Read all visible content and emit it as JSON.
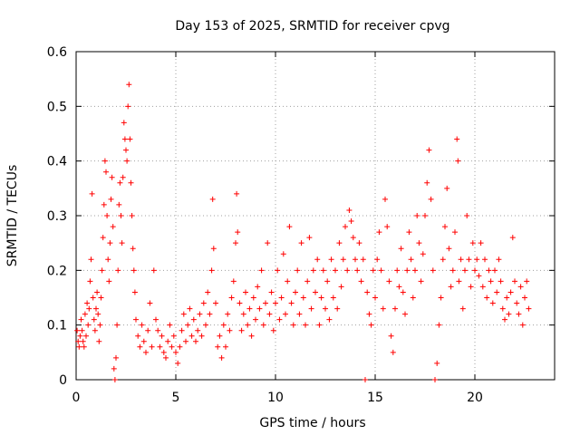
{
  "chart_data": {
    "type": "scatter",
    "title": "Day 153 of 2025, SRMTID for receiver cpvg",
    "xlabel": "GPS time / hours",
    "ylabel": "SRMTID / TECUs",
    "xlim": [
      0,
      24
    ],
    "ylim": [
      0,
      0.6
    ],
    "xticks": [
      0,
      5,
      10,
      15,
      20
    ],
    "xtick_labels": [
      "0",
      "5",
      "10",
      "15",
      "20"
    ],
    "yticks": [
      0,
      0.1,
      0.2,
      0.3,
      0.4,
      0.5,
      0.6
    ],
    "ytick_labels": [
      "0",
      "0.1",
      "0.2",
      "0.3",
      "0.4",
      "0.5",
      "0.6"
    ],
    "grid": true,
    "marker": "plus",
    "color": "#ff0000",
    "series": [
      {
        "name": "SRMTID",
        "points": [
          [
            0.05,
            0.09
          ],
          [
            0.1,
            0.07
          ],
          [
            0.15,
            0.06
          ],
          [
            0.2,
            0.08
          ],
          [
            0.25,
            0.11
          ],
          [
            0.3,
            0.09
          ],
          [
            0.35,
            0.07
          ],
          [
            0.4,
            0.06
          ],
          [
            0.45,
            0.12
          ],
          [
            0.5,
            0.08
          ],
          [
            0.55,
            0.14
          ],
          [
            0.6,
            0.1
          ],
          [
            0.65,
            0.13
          ],
          [
            0.7,
            0.18
          ],
          [
            0.75,
            0.22
          ],
          [
            0.8,
            0.34
          ],
          [
            0.85,
            0.15
          ],
          [
            0.9,
            0.11
          ],
          [
            0.95,
            0.09
          ],
          [
            1.0,
            0.13
          ],
          [
            1.05,
            0.16
          ],
          [
            1.1,
            0.12
          ],
          [
            1.15,
            0.07
          ],
          [
            1.2,
            0.1
          ],
          [
            1.25,
            0.15
          ],
          [
            1.3,
            0.2
          ],
          [
            1.35,
            0.26
          ],
          [
            1.4,
            0.32
          ],
          [
            1.45,
            0.4
          ],
          [
            1.5,
            0.38
          ],
          [
            1.55,
            0.3
          ],
          [
            1.6,
            0.22
          ],
          [
            1.65,
            0.18
          ],
          [
            1.7,
            0.25
          ],
          [
            1.75,
            0.33
          ],
          [
            1.8,
            0.37
          ],
          [
            1.85,
            0.28
          ],
          [
            1.9,
            0.02
          ],
          [
            1.95,
            0.0
          ],
          [
            2.0,
            0.04
          ],
          [
            2.05,
            0.1
          ],
          [
            2.1,
            0.2
          ],
          [
            2.15,
            0.32
          ],
          [
            2.2,
            0.36
          ],
          [
            2.25,
            0.3
          ],
          [
            2.3,
            0.25
          ],
          [
            2.35,
            0.37
          ],
          [
            2.4,
            0.47
          ],
          [
            2.45,
            0.44
          ],
          [
            2.5,
            0.42
          ],
          [
            2.55,
            0.4
          ],
          [
            2.6,
            0.5
          ],
          [
            2.65,
            0.54
          ],
          [
            2.7,
            0.44
          ],
          [
            2.75,
            0.36
          ],
          [
            2.8,
            0.3
          ],
          [
            2.85,
            0.24
          ],
          [
            2.9,
            0.2
          ],
          [
            2.95,
            0.16
          ],
          [
            3.0,
            0.11
          ],
          [
            3.1,
            0.08
          ],
          [
            3.2,
            0.06
          ],
          [
            3.3,
            0.1
          ],
          [
            3.4,
            0.07
          ],
          [
            3.5,
            0.05
          ],
          [
            3.6,
            0.09
          ],
          [
            3.7,
            0.14
          ],
          [
            3.8,
            0.06
          ],
          [
            3.9,
            0.2
          ],
          [
            4.0,
            0.11
          ],
          [
            4.1,
            0.09
          ],
          [
            4.2,
            0.06
          ],
          [
            4.3,
            0.08
          ],
          [
            4.4,
            0.05
          ],
          [
            4.5,
            0.04
          ],
          [
            4.6,
            0.07
          ],
          [
            4.7,
            0.1
          ],
          [
            4.8,
            0.06
          ],
          [
            4.9,
            0.08
          ],
          [
            5.0,
            0.05
          ],
          [
            5.1,
            0.03
          ],
          [
            5.2,
            0.06
          ],
          [
            5.3,
            0.09
          ],
          [
            5.4,
            0.12
          ],
          [
            5.5,
            0.07
          ],
          [
            5.6,
            0.1
          ],
          [
            5.7,
            0.13
          ],
          [
            5.8,
            0.08
          ],
          [
            5.9,
            0.11
          ],
          [
            6.0,
            0.07
          ],
          [
            6.1,
            0.09
          ],
          [
            6.2,
            0.12
          ],
          [
            6.3,
            0.08
          ],
          [
            6.4,
            0.14
          ],
          [
            6.5,
            0.1
          ],
          [
            6.6,
            0.16
          ],
          [
            6.7,
            0.12
          ],
          [
            6.8,
            0.2
          ],
          [
            6.85,
            0.33
          ],
          [
            6.9,
            0.24
          ],
          [
            7.0,
            0.14
          ],
          [
            7.1,
            0.06
          ],
          [
            7.2,
            0.08
          ],
          [
            7.3,
            0.04
          ],
          [
            7.4,
            0.1
          ],
          [
            7.5,
            0.06
          ],
          [
            7.6,
            0.12
          ],
          [
            7.7,
            0.09
          ],
          [
            7.8,
            0.15
          ],
          [
            7.9,
            0.18
          ],
          [
            8.0,
            0.25
          ],
          [
            8.05,
            0.34
          ],
          [
            8.1,
            0.27
          ],
          [
            8.2,
            0.14
          ],
          [
            8.3,
            0.09
          ],
          [
            8.4,
            0.12
          ],
          [
            8.5,
            0.16
          ],
          [
            8.6,
            0.1
          ],
          [
            8.7,
            0.13
          ],
          [
            8.8,
            0.08
          ],
          [
            8.9,
            0.15
          ],
          [
            9.0,
            0.11
          ],
          [
            9.1,
            0.17
          ],
          [
            9.2,
            0.13
          ],
          [
            9.3,
            0.2
          ],
          [
            9.4,
            0.1
          ],
          [
            9.5,
            0.14
          ],
          [
            9.6,
            0.25
          ],
          [
            9.7,
            0.12
          ],
          [
            9.8,
            0.16
          ],
          [
            9.9,
            0.09
          ],
          [
            10.0,
            0.14
          ],
          [
            10.1,
            0.2
          ],
          [
            10.2,
            0.11
          ],
          [
            10.3,
            0.15
          ],
          [
            10.4,
            0.23
          ],
          [
            10.5,
            0.12
          ],
          [
            10.6,
            0.18
          ],
          [
            10.7,
            0.28
          ],
          [
            10.8,
            0.14
          ],
          [
            10.9,
            0.1
          ],
          [
            11.0,
            0.16
          ],
          [
            11.1,
            0.2
          ],
          [
            11.2,
            0.12
          ],
          [
            11.3,
            0.25
          ],
          [
            11.4,
            0.15
          ],
          [
            11.5,
            0.1
          ],
          [
            11.6,
            0.18
          ],
          [
            11.7,
            0.26
          ],
          [
            11.8,
            0.13
          ],
          [
            11.9,
            0.2
          ],
          [
            12.0,
            0.16
          ],
          [
            12.1,
            0.22
          ],
          [
            12.2,
            0.1
          ],
          [
            12.3,
            0.15
          ],
          [
            12.4,
            0.2
          ],
          [
            12.5,
            0.13
          ],
          [
            12.6,
            0.18
          ],
          [
            12.7,
            0.11
          ],
          [
            12.8,
            0.22
          ],
          [
            12.9,
            0.15
          ],
          [
            13.0,
            0.2
          ],
          [
            13.1,
            0.13
          ],
          [
            13.2,
            0.25
          ],
          [
            13.3,
            0.17
          ],
          [
            13.4,
            0.22
          ],
          [
            13.5,
            0.28
          ],
          [
            13.6,
            0.2
          ],
          [
            13.7,
            0.31
          ],
          [
            13.8,
            0.29
          ],
          [
            13.9,
            0.26
          ],
          [
            14.0,
            0.22
          ],
          [
            14.1,
            0.2
          ],
          [
            14.2,
            0.25
          ],
          [
            14.3,
            0.18
          ],
          [
            14.4,
            0.22
          ],
          [
            14.5,
            0.0
          ],
          [
            14.6,
            0.16
          ],
          [
            14.7,
            0.12
          ],
          [
            14.8,
            0.1
          ],
          [
            14.9,
            0.2
          ],
          [
            15.0,
            0.15
          ],
          [
            15.1,
            0.22
          ],
          [
            15.2,
            0.27
          ],
          [
            15.3,
            0.2
          ],
          [
            15.4,
            0.13
          ],
          [
            15.5,
            0.33
          ],
          [
            15.6,
            0.28
          ],
          [
            15.7,
            0.18
          ],
          [
            15.8,
            0.08
          ],
          [
            15.9,
            0.05
          ],
          [
            16.0,
            0.13
          ],
          [
            16.1,
            0.2
          ],
          [
            16.2,
            0.17
          ],
          [
            16.3,
            0.24
          ],
          [
            16.4,
            0.16
          ],
          [
            16.5,
            0.12
          ],
          [
            16.6,
            0.2
          ],
          [
            16.7,
            0.27
          ],
          [
            16.8,
            0.22
          ],
          [
            16.9,
            0.15
          ],
          [
            17.0,
            0.2
          ],
          [
            17.1,
            0.3
          ],
          [
            17.2,
            0.25
          ],
          [
            17.3,
            0.18
          ],
          [
            17.4,
            0.23
          ],
          [
            17.5,
            0.3
          ],
          [
            17.6,
            0.36
          ],
          [
            17.7,
            0.42
          ],
          [
            17.8,
            0.33
          ],
          [
            17.9,
            0.2
          ],
          [
            18.0,
            0.0
          ],
          [
            18.1,
            0.03
          ],
          [
            18.2,
            0.1
          ],
          [
            18.3,
            0.15
          ],
          [
            18.4,
            0.22
          ],
          [
            18.5,
            0.28
          ],
          [
            18.6,
            0.35
          ],
          [
            18.7,
            0.24
          ],
          [
            18.8,
            0.17
          ],
          [
            18.9,
            0.2
          ],
          [
            19.0,
            0.27
          ],
          [
            19.1,
            0.44
          ],
          [
            19.15,
            0.4
          ],
          [
            19.2,
            0.18
          ],
          [
            19.3,
            0.22
          ],
          [
            19.4,
            0.13
          ],
          [
            19.5,
            0.2
          ],
          [
            19.6,
            0.3
          ],
          [
            19.7,
            0.22
          ],
          [
            19.8,
            0.17
          ],
          [
            19.9,
            0.25
          ],
          [
            20.0,
            0.2
          ],
          [
            20.1,
            0.22
          ],
          [
            20.2,
            0.19
          ],
          [
            20.3,
            0.25
          ],
          [
            20.4,
            0.17
          ],
          [
            20.5,
            0.22
          ],
          [
            20.6,
            0.15
          ],
          [
            20.7,
            0.2
          ],
          [
            20.8,
            0.18
          ],
          [
            20.9,
            0.14
          ],
          [
            21.0,
            0.2
          ],
          [
            21.1,
            0.16
          ],
          [
            21.2,
            0.22
          ],
          [
            21.3,
            0.18
          ],
          [
            21.4,
            0.13
          ],
          [
            21.5,
            0.11
          ],
          [
            21.6,
            0.15
          ],
          [
            21.7,
            0.12
          ],
          [
            21.8,
            0.16
          ],
          [
            21.9,
            0.26
          ],
          [
            22.0,
            0.18
          ],
          [
            22.1,
            0.14
          ],
          [
            22.2,
            0.12
          ],
          [
            22.3,
            0.17
          ],
          [
            22.4,
            0.1
          ],
          [
            22.5,
            0.15
          ],
          [
            22.6,
            0.18
          ],
          [
            22.7,
            0.13
          ]
        ]
      }
    ]
  }
}
